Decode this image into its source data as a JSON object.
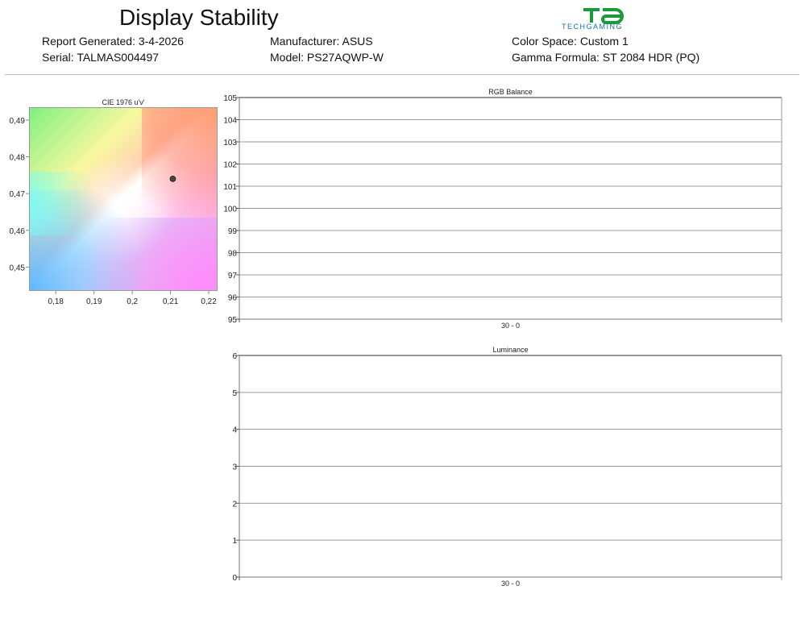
{
  "header": {
    "title": "Display Stability",
    "report_generated": "Report Generated: 3-4-2026",
    "serial": "Serial: TALMAS004497",
    "manufacturer": "Manufacturer: ASUS",
    "model": "Model: PS27AQWP-W",
    "color_space": "Color Space: Custom 1",
    "gamma_formula": "Gamma Formula: ST 2084 HDR (PQ)",
    "logo_mark": "TD",
    "logo_text": "TECHGAMING"
  },
  "chart_data": [
    {
      "type": "scatter",
      "title": "CIE 1976 u'v'",
      "xlim": [
        0.173,
        0.2223
      ],
      "ylim": [
        0.4435,
        0.4935
      ],
      "x_ticks": [
        "0,18",
        "0,19",
        "0,2",
        "0,21",
        "0,22"
      ],
      "x_tick_values": [
        0.18,
        0.19,
        0.2,
        0.21,
        0.22
      ],
      "y_ticks": [
        "0,45",
        "0,46",
        "0,47",
        "0,48",
        "0,49"
      ],
      "y_tick_values": [
        0.45,
        0.46,
        0.47,
        0.48,
        0.49
      ],
      "points": [
        {
          "x": 0.2106,
          "y": 0.474
        }
      ],
      "point_color": "#444444",
      "grid": false
    },
    {
      "type": "line",
      "title": "RGB Balance",
      "categories": [
        "30 - 0"
      ],
      "ylim": [
        95,
        105
      ],
      "y_ticks": [
        "95",
        "96",
        "97",
        "98",
        "99",
        "100",
        "101",
        "102",
        "103",
        "104",
        "105"
      ],
      "series": [],
      "grid": true
    },
    {
      "type": "line",
      "title": "Luminance",
      "categories": [
        "30 - 0"
      ],
      "ylim": [
        0,
        6
      ],
      "y_ticks": [
        "0",
        "1",
        "2",
        "3",
        "4",
        "5",
        "6"
      ],
      "series": [],
      "grid": true
    }
  ]
}
